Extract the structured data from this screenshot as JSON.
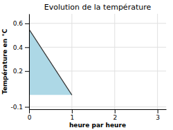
{
  "chart_data": {
    "type": "area",
    "title": "Evolution de la température",
    "x_label": "heure par heure",
    "y_label": "Température en °C",
    "x": [
      0,
      1
    ],
    "values": [
      0.55,
      0.0
    ],
    "color": "#add8e6",
    "xlim": [
      0,
      3.2
    ],
    "ylim": [
      -0.12,
      0.68
    ],
    "xticks": [
      0,
      1,
      2,
      3
    ],
    "yticks": [
      -0.1,
      0.2,
      0.4,
      0.6
    ],
    "grid": true
  }
}
